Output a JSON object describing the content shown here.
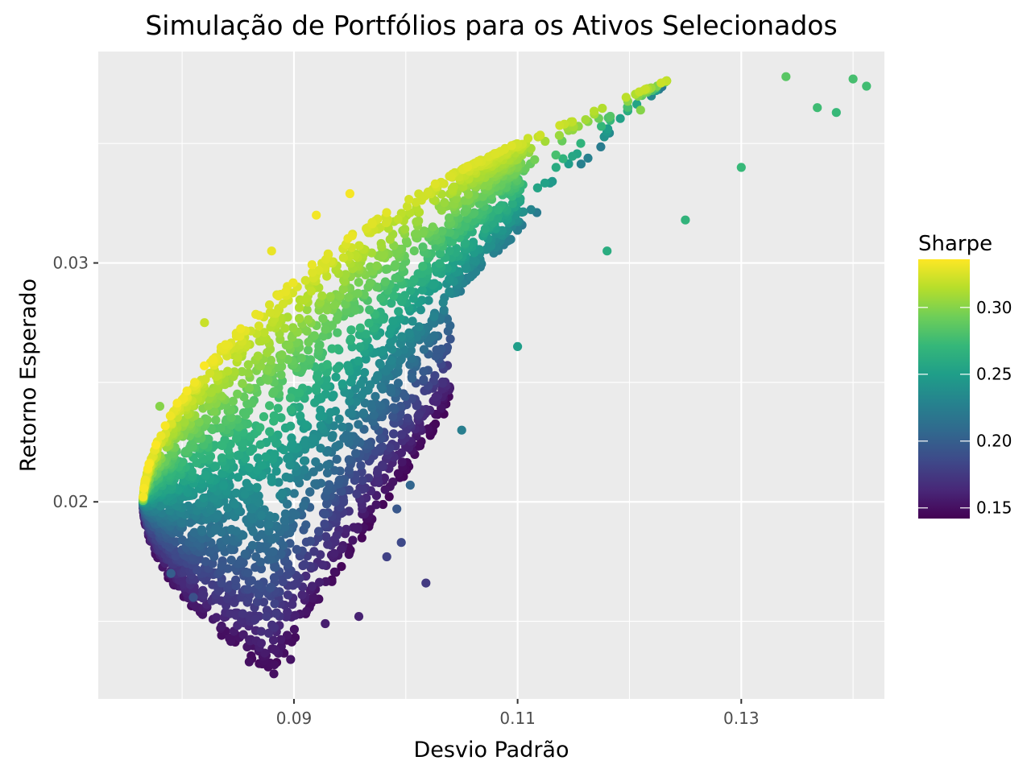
{
  "chart_data": {
    "type": "scatter",
    "title": "Simulação de Portfólios para os Ativos Selecionados",
    "xlabel": "Desvio Padrão",
    "ylabel": "Retorno Esperado",
    "xlim": [
      0.0725,
      0.1428
    ],
    "ylim": [
      0.01175,
      0.03885
    ],
    "x_ticks": [
      {
        "value": 0.09,
        "label": "0.09"
      },
      {
        "value": 0.11,
        "label": "0.11"
      },
      {
        "value": 0.13,
        "label": "0.13"
      }
    ],
    "y_ticks": [
      {
        "value": 0.02,
        "label": "0.02"
      },
      {
        "value": 0.03,
        "label": "0.03"
      }
    ],
    "grid": true,
    "panel_background": "#ebebeb",
    "legend": {
      "title": "Sharpe",
      "position": "right",
      "range": [
        0.142,
        0.336
      ],
      "breaks": [
        {
          "value": 0.15,
          "label": "0.15"
        },
        {
          "value": 0.2,
          "label": "0.20"
        },
        {
          "value": 0.25,
          "label": "0.25"
        },
        {
          "value": 0.3,
          "label": "0.30"
        }
      ]
    },
    "colormap": "viridis",
    "colormap_stops": [
      "#440154",
      "#482878",
      "#3e4989",
      "#31688e",
      "#26828e",
      "#1f9e89",
      "#35b779",
      "#6ece58",
      "#b5de2b",
      "#fde725"
    ],
    "sample_points": [
      [
        0.0882,
        0.0128,
        0.15
      ],
      [
        0.086,
        0.0133,
        0.15
      ],
      [
        0.0897,
        0.0134,
        0.152
      ],
      [
        0.0928,
        0.0149,
        0.158
      ],
      [
        0.0958,
        0.0152,
        0.16
      ],
      [
        0.1018,
        0.0166,
        0.175
      ],
      [
        0.0983,
        0.0177,
        0.18
      ],
      [
        0.0996,
        0.0183,
        0.185
      ],
      [
        0.0992,
        0.0197,
        0.195
      ],
      [
        0.1004,
        0.0207,
        0.205
      ],
      [
        0.105,
        0.023,
        0.225
      ],
      [
        0.11,
        0.0265,
        0.25
      ],
      [
        0.118,
        0.0305,
        0.262
      ],
      [
        0.125,
        0.0318,
        0.268
      ],
      [
        0.13,
        0.034,
        0.272
      ],
      [
        0.134,
        0.0378,
        0.285
      ],
      [
        0.1368,
        0.0365,
        0.275
      ],
      [
        0.1385,
        0.0363,
        0.272
      ],
      [
        0.14,
        0.0377,
        0.278
      ],
      [
        0.1412,
        0.0374,
        0.276
      ],
      [
        0.115,
        0.0357,
        0.31
      ],
      [
        0.109,
        0.0346,
        0.32
      ],
      [
        0.121,
        0.0364,
        0.3
      ],
      [
        0.077,
        0.0209,
        0.255
      ],
      [
        0.078,
        0.024,
        0.3
      ],
      [
        0.082,
        0.0275,
        0.32
      ],
      [
        0.088,
        0.0305,
        0.33
      ],
      [
        0.092,
        0.032,
        0.333
      ],
      [
        0.095,
        0.0329,
        0.334
      ],
      [
        0.079,
        0.017,
        0.2
      ],
      [
        0.081,
        0.016,
        0.19
      ]
    ]
  }
}
